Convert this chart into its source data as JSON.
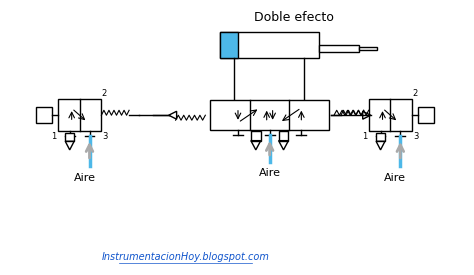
{
  "title": "Doble efecto",
  "subtitle": "InstrumentacionHoy.blogspot.com",
  "aire_label": "Aire",
  "bg_color": "#ffffff",
  "blue_color": "#4db8e8",
  "line_color": "#000000",
  "gray_color": "#cccccc",
  "dark_gray": "#555555"
}
